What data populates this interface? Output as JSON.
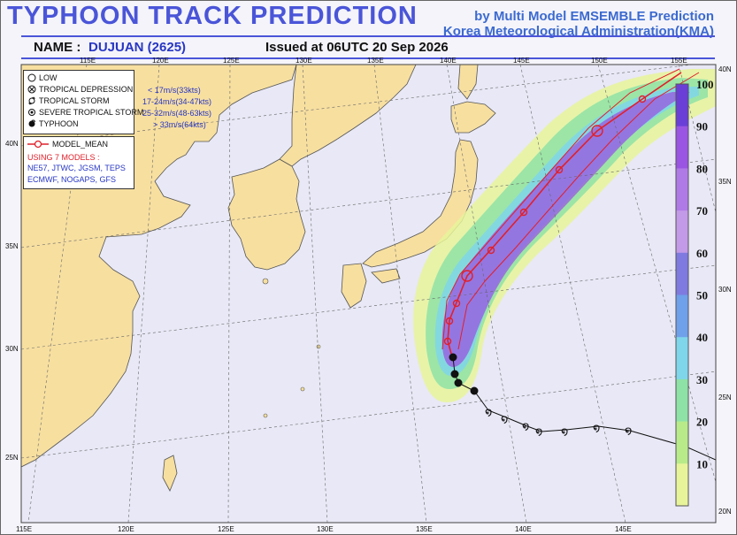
{
  "header": {
    "title": "TYPHOON  TRACK  PREDICTION",
    "credit_line1": "by Multi Model EMSEMBLE Prediction",
    "credit_line2": "Korea Meteorological Administration(KMA)",
    "name_label": "NAME :",
    "name_value": "DUJUAN (2625)",
    "issued": "Issued at  06UTC 20 Sep 2026"
  },
  "legend": {
    "items": [
      {
        "label": "LOW",
        "value": "",
        "icon": "low-circle-icon"
      },
      {
        "label": "TROPICAL DEPRESSION",
        "value": "< 17m/s(33kts)",
        "icon": "tropical-depression-icon"
      },
      {
        "label": "TROPICAL STORM",
        "value": "17-24m/s(34-47kts)",
        "icon": "tropical-storm-icon"
      },
      {
        "label": "SEVERE TROPICAL STORM",
        "value": "25-32m/s(48-63kts)",
        "icon": "severe-tropical-storm-icon"
      },
      {
        "label": "TYPHOON",
        "value": "> 33m/s(64kts)",
        "icon": "typhoon-icon"
      }
    ]
  },
  "model_box": {
    "mean_label": "MODEL_MEAN",
    "using": "USING 7 MODELS :",
    "models_line1": "NE57, JTWC, JGSM, TEPS",
    "models_line2": "ECMWF, NOGAPS, GFS"
  },
  "axes": {
    "top_lon_labels": [
      "115E",
      "120E",
      "125E",
      "130E",
      "135E",
      "140E",
      "145E",
      "150E",
      "155E"
    ],
    "bottom_lon_labels": [
      "115E",
      "120E",
      "125E",
      "130E",
      "135E",
      "140E",
      "145E"
    ],
    "left_lat_labels": [
      "40N",
      "35N",
      "30N",
      "25N"
    ],
    "right_lat_labels": [
      "40N",
      "35N",
      "30N",
      "25N",
      "20N"
    ]
  },
  "probability_scale": {
    "ticks": [
      "100",
      "90",
      "80",
      "70",
      "60",
      "50",
      "40",
      "30",
      "20",
      "10"
    ],
    "colors": [
      "#6a3fd8",
      "#9a55e2",
      "#b07ae6",
      "#c39ae8",
      "#7f7ae0",
      "#6fa0ea",
      "#7fd6ea",
      "#8ee2a6",
      "#b8ea8a",
      "#e8f49a"
    ]
  },
  "colors": {
    "land": "#f7dfa0",
    "sea": "#e8e8f6",
    "title": "#4a55d8",
    "model_mean": "#e0202a",
    "observed_track": "#111111"
  }
}
